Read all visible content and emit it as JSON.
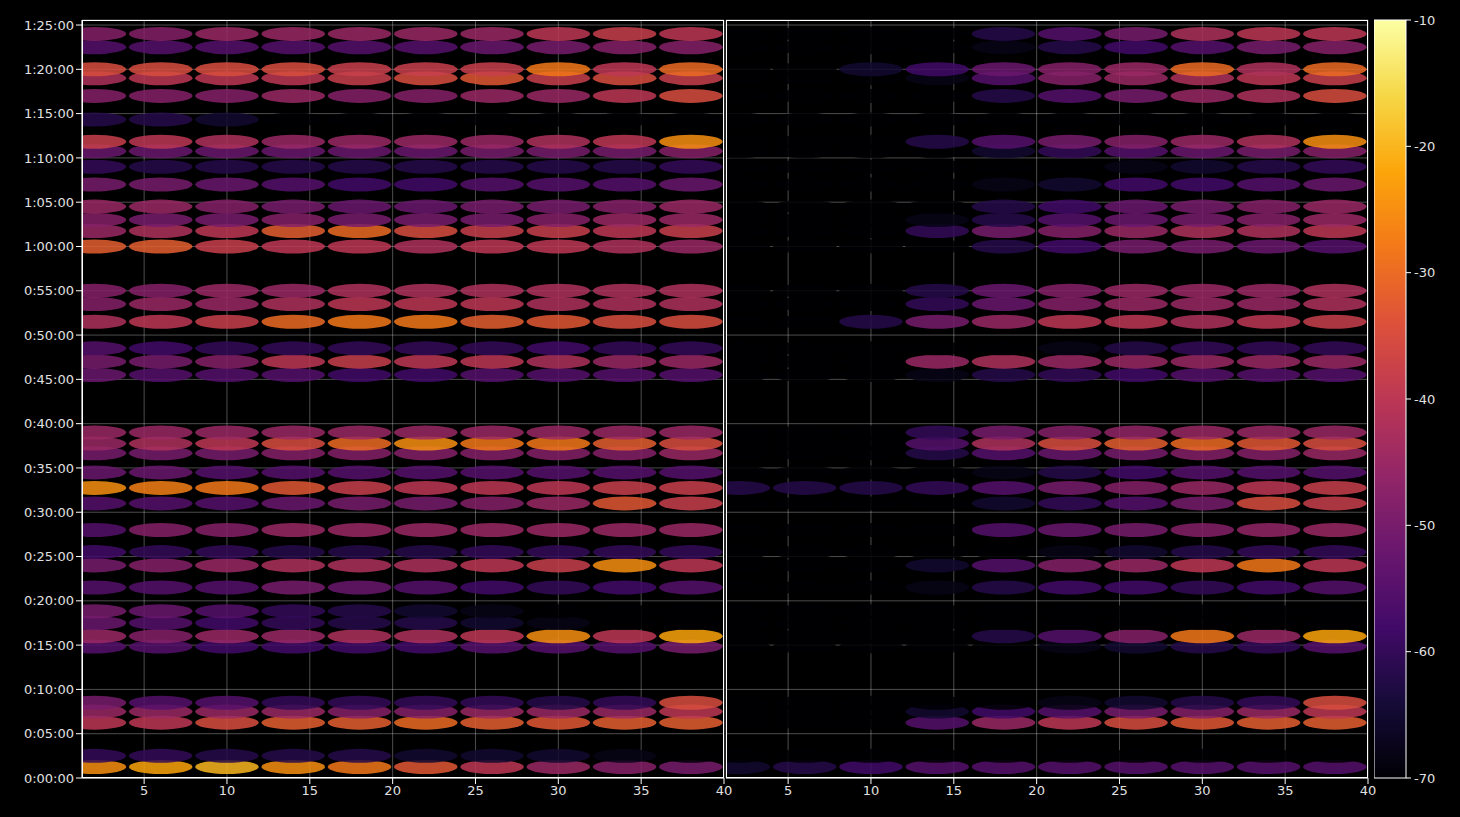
{
  "chart_data": {
    "type": "heatmap",
    "grid": true,
    "ylim": [
      0,
      5134
    ],
    "yticks": [
      {
        "value": 0,
        "label": "0:00:00"
      },
      {
        "value": 300,
        "label": "0:05:00"
      },
      {
        "value": 600,
        "label": "0:10:00"
      },
      {
        "value": 900,
        "label": "0:15:00"
      },
      {
        "value": 1200,
        "label": "0:20:00"
      },
      {
        "value": 1500,
        "label": "0:25:00"
      },
      {
        "value": 1800,
        "label": "0:30:00"
      },
      {
        "value": 2100,
        "label": "0:35:00"
      },
      {
        "value": 2400,
        "label": "0:40:00"
      },
      {
        "value": 2700,
        "label": "0:45:00"
      },
      {
        "value": 3000,
        "label": "0:50:00"
      },
      {
        "value": 3300,
        "label": "0:55:00"
      },
      {
        "value": 3600,
        "label": "1:00:00"
      },
      {
        "value": 3900,
        "label": "1:05:00"
      },
      {
        "value": 4200,
        "label": "1:10:00"
      },
      {
        "value": 4500,
        "label": "1:15:00"
      },
      {
        "value": 4800,
        "label": "1:20:00"
      },
      {
        "value": 5100,
        "label": "1:25:00"
      }
    ],
    "colorbar": {
      "range": [
        -70,
        -10
      ],
      "ticks": [
        -10,
        -20,
        -30,
        -40,
        -50,
        -60,
        -70
      ]
    },
    "panels": [
      {
        "xlim": [
          1.25,
          40
        ],
        "xticks": [
          5,
          10,
          15,
          20,
          25,
          30,
          35,
          40
        ],
        "x": [
          2,
          6,
          10,
          14,
          18,
          22,
          26,
          30,
          34,
          38
        ],
        "y": [
          75,
          150,
          375,
          450,
          510,
          890,
          960,
          1050,
          1130,
          1290,
          1440,
          1530,
          1680,
          1860,
          1965,
          2070,
          2200,
          2265,
          2340,
          2730,
          2820,
          2910,
          3090,
          3210,
          3300,
          3600,
          3705,
          3780,
          3870,
          4020,
          4140,
          4245,
          4310,
          4460,
          4620,
          4740,
          4800,
          4950,
          5040
        ],
        "values": [
          [
            -25,
            -22,
            -20,
            -25,
            -28,
            -33,
            -40,
            -45,
            -48,
            -50
          ],
          [
            -60,
            -60,
            -62,
            -62,
            -62,
            -65,
            -65,
            -65,
            -68,
            -70
          ],
          [
            -40,
            -40,
            -35,
            -32,
            -32,
            -30,
            -32,
            -33,
            -32,
            -32
          ],
          [
            -45,
            -45,
            -45,
            -45,
            -48,
            -48,
            -45,
            -45,
            -45,
            -40
          ],
          [
            -50,
            -55,
            -55,
            -60,
            -60,
            -60,
            -60,
            -62,
            -60,
            -35
          ],
          [
            -55,
            -55,
            -58,
            -58,
            -58,
            -58,
            -55,
            -55,
            -55,
            -50
          ],
          [
            -45,
            -48,
            -45,
            -45,
            -42,
            -42,
            -40,
            -25,
            -40,
            -22
          ],
          [
            -52,
            -55,
            -58,
            -60,
            -62,
            -62,
            -65,
            -68,
            -70,
            -70
          ],
          [
            -50,
            -52,
            -55,
            -60,
            -62,
            -65,
            -68,
            -70,
            -70,
            -70
          ],
          [
            -55,
            -55,
            -55,
            -50,
            -52,
            -55,
            -58,
            -60,
            -58,
            -55
          ],
          [
            -50,
            -48,
            -45,
            -42,
            -42,
            -42,
            -40,
            -38,
            -25,
            -40
          ],
          [
            -58,
            -60,
            -60,
            -62,
            -62,
            -62,
            -60,
            -60,
            -60,
            -60
          ],
          [
            -55,
            -48,
            -48,
            -45,
            -45,
            -45,
            -45,
            -45,
            -45,
            -45
          ],
          [
            -55,
            -55,
            -55,
            -52,
            -50,
            -50,
            -48,
            -45,
            -33,
            -38
          ],
          [
            -25,
            -27,
            -28,
            -33,
            -38,
            -40,
            -40,
            -40,
            -38,
            -38
          ],
          [
            -52,
            -52,
            -55,
            -55,
            -55,
            -55,
            -55,
            -55,
            -55,
            -55
          ],
          [
            -50,
            -50,
            -50,
            -48,
            -48,
            -48,
            -48,
            -48,
            -48,
            -45
          ],
          [
            -45,
            -42,
            -40,
            -35,
            -30,
            -25,
            -28,
            -28,
            -32,
            -35
          ],
          [
            -45,
            -45,
            -45,
            -45,
            -45,
            -45,
            -45,
            -45,
            -45,
            -45
          ],
          [
            -52,
            -55,
            -55,
            -55,
            -58,
            -58,
            -55,
            -55,
            -55,
            -55
          ],
          [
            -50,
            -50,
            -48,
            -40,
            -38,
            -40,
            -40,
            -42,
            -45,
            -45
          ],
          [
            -55,
            -58,
            -60,
            -60,
            -60,
            -60,
            -60,
            -58,
            -60,
            -60
          ],
          [
            -42,
            -40,
            -38,
            -30,
            -28,
            -28,
            -32,
            -33,
            -35,
            -35
          ],
          [
            -48,
            -45,
            -45,
            -42,
            -40,
            -40,
            -40,
            -42,
            -42,
            -42
          ],
          [
            -48,
            -48,
            -45,
            -45,
            -42,
            -42,
            -42,
            -42,
            -42,
            -42
          ],
          [
            -32,
            -32,
            -38,
            -40,
            -40,
            -42,
            -40,
            -40,
            -42,
            -45
          ],
          [
            -45,
            -42,
            -40,
            -32,
            -30,
            -35,
            -38,
            -38,
            -40,
            -38
          ],
          [
            -48,
            -50,
            -50,
            -48,
            -50,
            -50,
            -50,
            -48,
            -45,
            -45
          ],
          [
            -45,
            -45,
            -48,
            -50,
            -52,
            -52,
            -50,
            -50,
            -48,
            -45
          ],
          [
            -50,
            -50,
            -52,
            -55,
            -58,
            -58,
            -55,
            -55,
            -55,
            -52
          ],
          [
            -60,
            -62,
            -62,
            -62,
            -62,
            -62,
            -62,
            -62,
            -62,
            -60
          ],
          [
            -52,
            -52,
            -52,
            -52,
            -52,
            -52,
            -50,
            -50,
            -50,
            -48
          ],
          [
            -38,
            -40,
            -42,
            -45,
            -45,
            -45,
            -45,
            -42,
            -40,
            -25
          ],
          [
            -62,
            -62,
            -65,
            -70,
            -70,
            -70,
            -70,
            -70,
            -70,
            -70
          ],
          [
            -48,
            -48,
            -48,
            -45,
            -48,
            -48,
            -45,
            -45,
            -40,
            -35
          ],
          [
            -42,
            -40,
            -40,
            -40,
            -38,
            -35,
            -33,
            -38,
            -35,
            -38
          ],
          [
            -35,
            -35,
            -35,
            -35,
            -38,
            -38,
            -38,
            -28,
            -40,
            -30
          ],
          [
            -55,
            -55,
            -55,
            -55,
            -55,
            -55,
            -52,
            -50,
            -48,
            -48
          ],
          [
            -48,
            -48,
            -45,
            -45,
            -45,
            -45,
            -45,
            -40,
            -38,
            -40
          ]
        ]
      },
      {
        "xlim": [
          1.25,
          40
        ],
        "xticks": [
          5,
          10,
          15,
          20,
          25,
          30,
          35,
          40
        ],
        "x": [
          2,
          6,
          10,
          14,
          18,
          22,
          26,
          30,
          34,
          38
        ],
        "y": [
          75,
          150,
          375,
          450,
          510,
          890,
          960,
          1050,
          1130,
          1290,
          1440,
          1530,
          1680,
          1860,
          1965,
          2070,
          2200,
          2265,
          2340,
          2730,
          2820,
          2910,
          3090,
          3210,
          3300,
          3600,
          3705,
          3780,
          3870,
          4020,
          4140,
          4245,
          4310,
          4460,
          4620,
          4740,
          4800,
          4950,
          5040
        ],
        "values": [
          [
            -65,
            -62,
            -58,
            -55,
            -55,
            -55,
            -55,
            -55,
            -55,
            -55
          ],
          [
            -70,
            -70,
            -70,
            -70,
            -70,
            -70,
            -70,
            -70,
            -70,
            -70
          ],
          [
            -70,
            -70,
            -70,
            -55,
            -45,
            -40,
            -35,
            -33,
            -32,
            -32
          ],
          [
            -70,
            -70,
            -70,
            -65,
            -58,
            -55,
            -50,
            -48,
            -45,
            -40
          ],
          [
            -70,
            -70,
            -70,
            -70,
            -70,
            -68,
            -65,
            -62,
            -60,
            -35
          ],
          [
            -70,
            -70,
            -70,
            -70,
            -70,
            -68,
            -65,
            -62,
            -60,
            -55
          ],
          [
            -70,
            -70,
            -70,
            -70,
            -62,
            -55,
            -48,
            -28,
            -45,
            -22
          ],
          [
            -70,
            -70,
            -70,
            -70,
            -70,
            -70,
            -70,
            -70,
            -70,
            -70
          ],
          [
            -70,
            -70,
            -70,
            -70,
            -70,
            -70,
            -70,
            -70,
            -70,
            -70
          ],
          [
            -70,
            -70,
            -70,
            -68,
            -62,
            -58,
            -58,
            -60,
            -58,
            -55
          ],
          [
            -70,
            -70,
            -70,
            -65,
            -55,
            -48,
            -45,
            -40,
            -28,
            -40
          ],
          [
            -70,
            -70,
            -70,
            -70,
            -70,
            -68,
            -65,
            -62,
            -60,
            -60
          ],
          [
            -70,
            -70,
            -70,
            -70,
            -55,
            -52,
            -50,
            -48,
            -46,
            -45
          ],
          [
            -70,
            -70,
            -70,
            -70,
            -65,
            -60,
            -55,
            -50,
            -35,
            -38
          ],
          [
            -62,
            -62,
            -62,
            -60,
            -55,
            -50,
            -48,
            -45,
            -40,
            -38
          ],
          [
            -70,
            -70,
            -70,
            -70,
            -68,
            -62,
            -58,
            -55,
            -55,
            -55
          ],
          [
            -70,
            -70,
            -70,
            -62,
            -55,
            -52,
            -50,
            -48,
            -48,
            -45
          ],
          [
            -70,
            -70,
            -70,
            -55,
            -42,
            -35,
            -32,
            -30,
            -33,
            -35
          ],
          [
            -70,
            -70,
            -70,
            -60,
            -50,
            -48,
            -46,
            -45,
            -45,
            -45
          ],
          [
            -70,
            -70,
            -70,
            -68,
            -62,
            -60,
            -58,
            -55,
            -55,
            -55
          ],
          [
            -70,
            -70,
            -70,
            -45,
            -42,
            -45,
            -45,
            -45,
            -45,
            -45
          ],
          [
            -70,
            -70,
            -70,
            -70,
            -70,
            -68,
            -62,
            -60,
            -60,
            -60
          ],
          [
            -70,
            -70,
            -62,
            -50,
            -45,
            -40,
            -40,
            -42,
            -40,
            -38
          ],
          [
            -70,
            -70,
            -70,
            -60,
            -52,
            -48,
            -45,
            -45,
            -45,
            -42
          ],
          [
            -70,
            -70,
            -70,
            -62,
            -52,
            -48,
            -45,
            -45,
            -45,
            -42
          ],
          [
            -70,
            -70,
            -70,
            -70,
            -62,
            -58,
            -50,
            -50,
            -52,
            -55
          ],
          [
            -70,
            -70,
            -70,
            -60,
            -50,
            -48,
            -45,
            -42,
            -42,
            -40
          ],
          [
            -70,
            -70,
            -70,
            -68,
            -62,
            -55,
            -52,
            -50,
            -48,
            -45
          ],
          [
            -70,
            -70,
            -70,
            -70,
            -62,
            -58,
            -52,
            -50,
            -48,
            -45
          ],
          [
            -70,
            -70,
            -70,
            -70,
            -68,
            -65,
            -58,
            -58,
            -55,
            -52
          ],
          [
            -70,
            -70,
            -70,
            -70,
            -70,
            -70,
            -68,
            -65,
            -62,
            -60
          ],
          [
            -70,
            -70,
            -70,
            -70,
            -65,
            -60,
            -55,
            -52,
            -50,
            -48
          ],
          [
            -70,
            -70,
            -70,
            -62,
            -55,
            -50,
            -48,
            -45,
            -42,
            -25
          ],
          [
            -70,
            -70,
            -70,
            -70,
            -70,
            -70,
            -70,
            -70,
            -70,
            -70
          ],
          [
            -70,
            -70,
            -70,
            -70,
            -62,
            -55,
            -50,
            -45,
            -42,
            -35
          ],
          [
            -70,
            -70,
            -70,
            -68,
            -55,
            -48,
            -45,
            -42,
            -40,
            -38
          ],
          [
            -70,
            -70,
            -65,
            -58,
            -52,
            -48,
            -45,
            -30,
            -42,
            -30
          ],
          [
            -70,
            -70,
            -70,
            -70,
            -68,
            -62,
            -58,
            -55,
            -50,
            -48
          ],
          [
            -70,
            -70,
            -70,
            -70,
            -62,
            -55,
            -50,
            -42,
            -40,
            -40
          ]
        ]
      }
    ]
  }
}
